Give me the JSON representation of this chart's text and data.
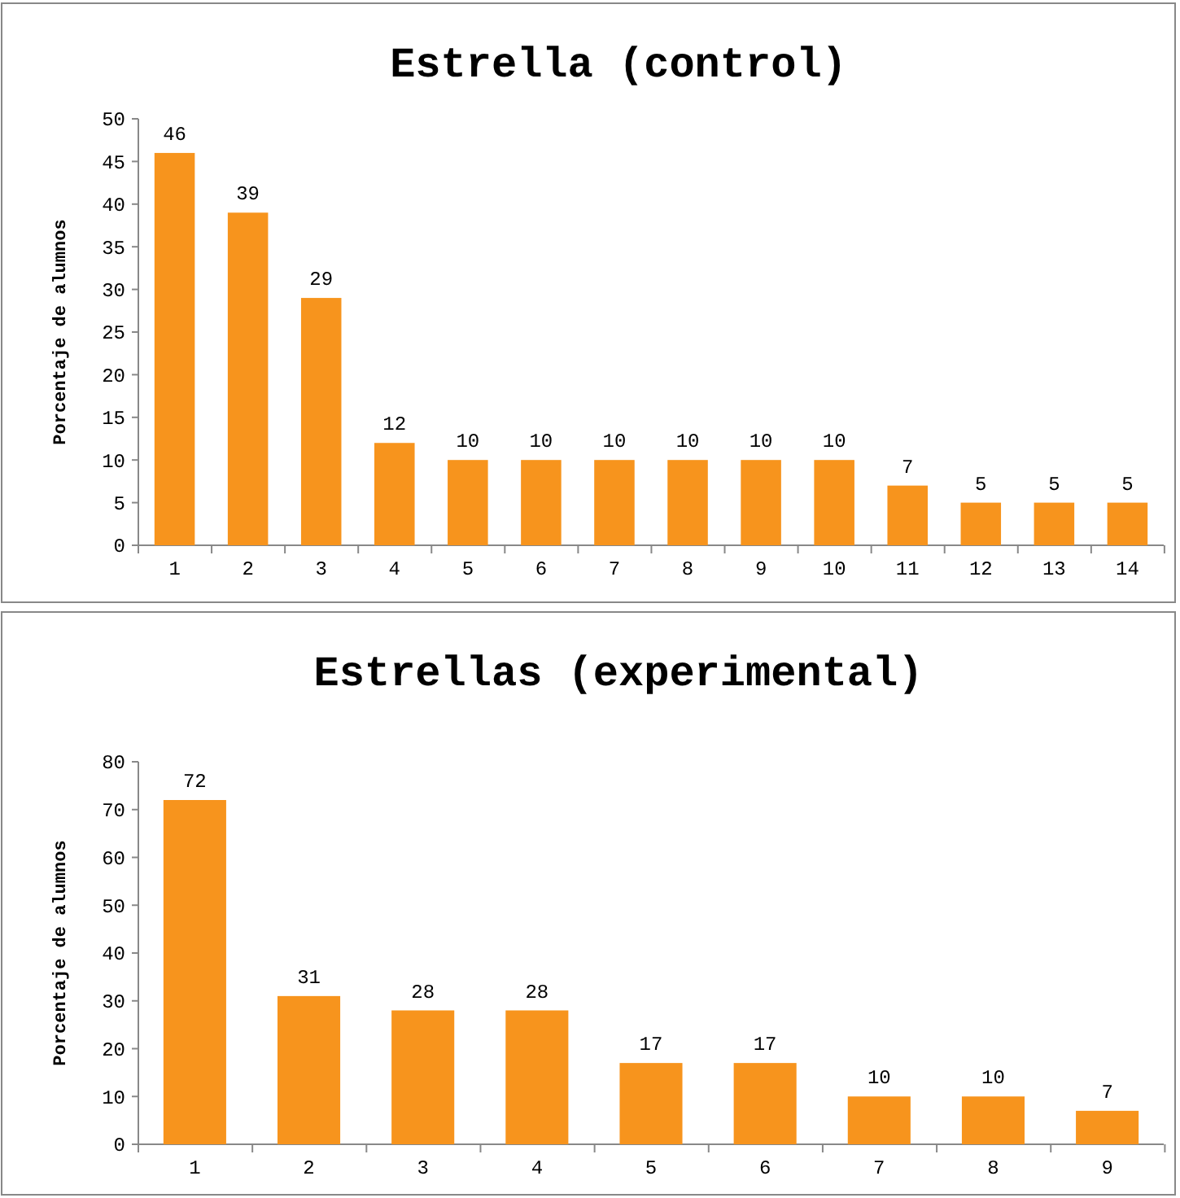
{
  "chart_data": [
    {
      "type": "bar",
      "title": "Estrella (control)",
      "ylabel": "Porcentaje de alumnos",
      "categories": [
        "1",
        "2",
        "3",
        "4",
        "5",
        "6",
        "7",
        "8",
        "9",
        "10",
        "11",
        "12",
        "13",
        "14"
      ],
      "values": [
        46,
        39,
        29,
        12,
        10,
        10,
        10,
        10,
        10,
        10,
        7,
        5,
        5,
        5
      ],
      "color": "#f7941d",
      "ylim": [
        0,
        50
      ],
      "yticks": [
        0,
        5,
        10,
        15,
        20,
        25,
        30,
        35,
        40,
        45,
        50
      ],
      "data_labels": true
    },
    {
      "type": "bar",
      "title": "Estrellas (experimental)",
      "ylabel": "Porcentaje de alumnos",
      "categories": [
        "1",
        "2",
        "3",
        "4",
        "5",
        "6",
        "7",
        "8",
        "9"
      ],
      "values": [
        72,
        31,
        28,
        28,
        17,
        17,
        10,
        10,
        7
      ],
      "color": "#f7941d",
      "ylim": [
        0,
        80
      ],
      "yticks": [
        0,
        10,
        20,
        30,
        40,
        50,
        60,
        70,
        80
      ],
      "data_labels": true
    }
  ]
}
